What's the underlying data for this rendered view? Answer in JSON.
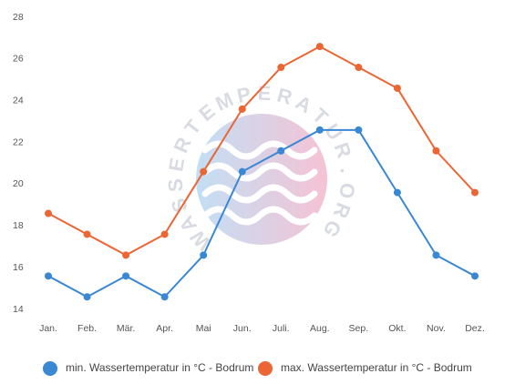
{
  "chart_data": {
    "type": "line",
    "categories": [
      "Jan.",
      "Feb.",
      "Mär.",
      "Apr.",
      "Mai",
      "Jun.",
      "Juli.",
      "Aug.",
      "Sep.",
      "Okt.",
      "Nov.",
      "Dez."
    ],
    "series": [
      {
        "name": "min. Wassertemperatur in °C - Bodrum",
        "color": "#3a87d4",
        "values": [
          15.6,
          14.6,
          15.6,
          14.6,
          16.6,
          20.6,
          21.6,
          22.6,
          22.6,
          19.6,
          16.6,
          15.6
        ]
      },
      {
        "name": "max. Wassertemperatur in °C - Bodrum",
        "color": "#eb6535",
        "values": [
          18.6,
          17.6,
          16.6,
          17.6,
          20.6,
          23.6,
          25.6,
          26.6,
          25.6,
          24.6,
          21.6,
          19.6
        ]
      }
    ],
    "ylim": [
      14,
      28
    ],
    "yticks": [
      14,
      16,
      18,
      20,
      22,
      24,
      26,
      28
    ],
    "grid": false,
    "legend_position": "bottom",
    "watermark": "WASSERTEMPERATUR.ORG"
  }
}
